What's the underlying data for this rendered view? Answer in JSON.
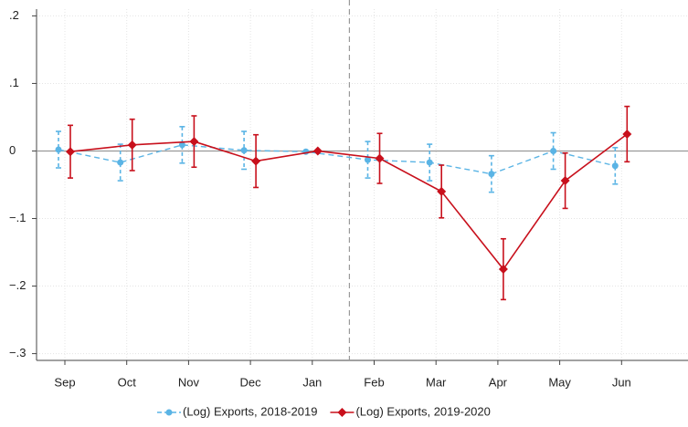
{
  "chart_data": {
    "type": "line",
    "categories": [
      "Sep",
      "Oct",
      "Nov",
      "Dec",
      "Jan",
      "Feb",
      "Mar",
      "Apr",
      "May",
      "Jun"
    ],
    "series": [
      {
        "name": "(Log) Exports, 2018-2019",
        "color": "#5ab4e5",
        "dashed": true,
        "marker": "circle",
        "values": [
          0.002,
          -0.017,
          0.009,
          0.001,
          -0.001,
          -0.013,
          -0.017,
          -0.034,
          0.0,
          -0.022
        ],
        "errors": [
          0.027,
          0.027,
          0.027,
          0.028,
          0,
          0.027,
          0.027,
          0.027,
          0.027,
          0.027
        ]
      },
      {
        "name": "(Log) Exports, 2019-2020",
        "color": "#c8101c",
        "dashed": false,
        "marker": "diamond",
        "values": [
          -0.001,
          0.009,
          0.014,
          -0.015,
          0,
          -0.011,
          -0.06,
          -0.175,
          -0.044,
          0.025
        ],
        "errors": [
          0.039,
          0.038,
          0.038,
          0.039,
          0,
          0.037,
          0.039,
          0.045,
          0.041,
          0.041
        ]
      }
    ],
    "ylim": [
      -0.31,
      0.21
    ],
    "yticks": [
      {
        "value": 0.2,
        "label": ".2"
      },
      {
        "value": 0.1,
        "label": ".1"
      },
      0,
      {
        "value": -0.1,
        "label": "−.1"
      },
      {
        "value": -0.2,
        "label": "−.2"
      },
      {
        "value": -0.3,
        "label": "−.3"
      }
    ],
    "grid": true,
    "legend": "bottom"
  }
}
